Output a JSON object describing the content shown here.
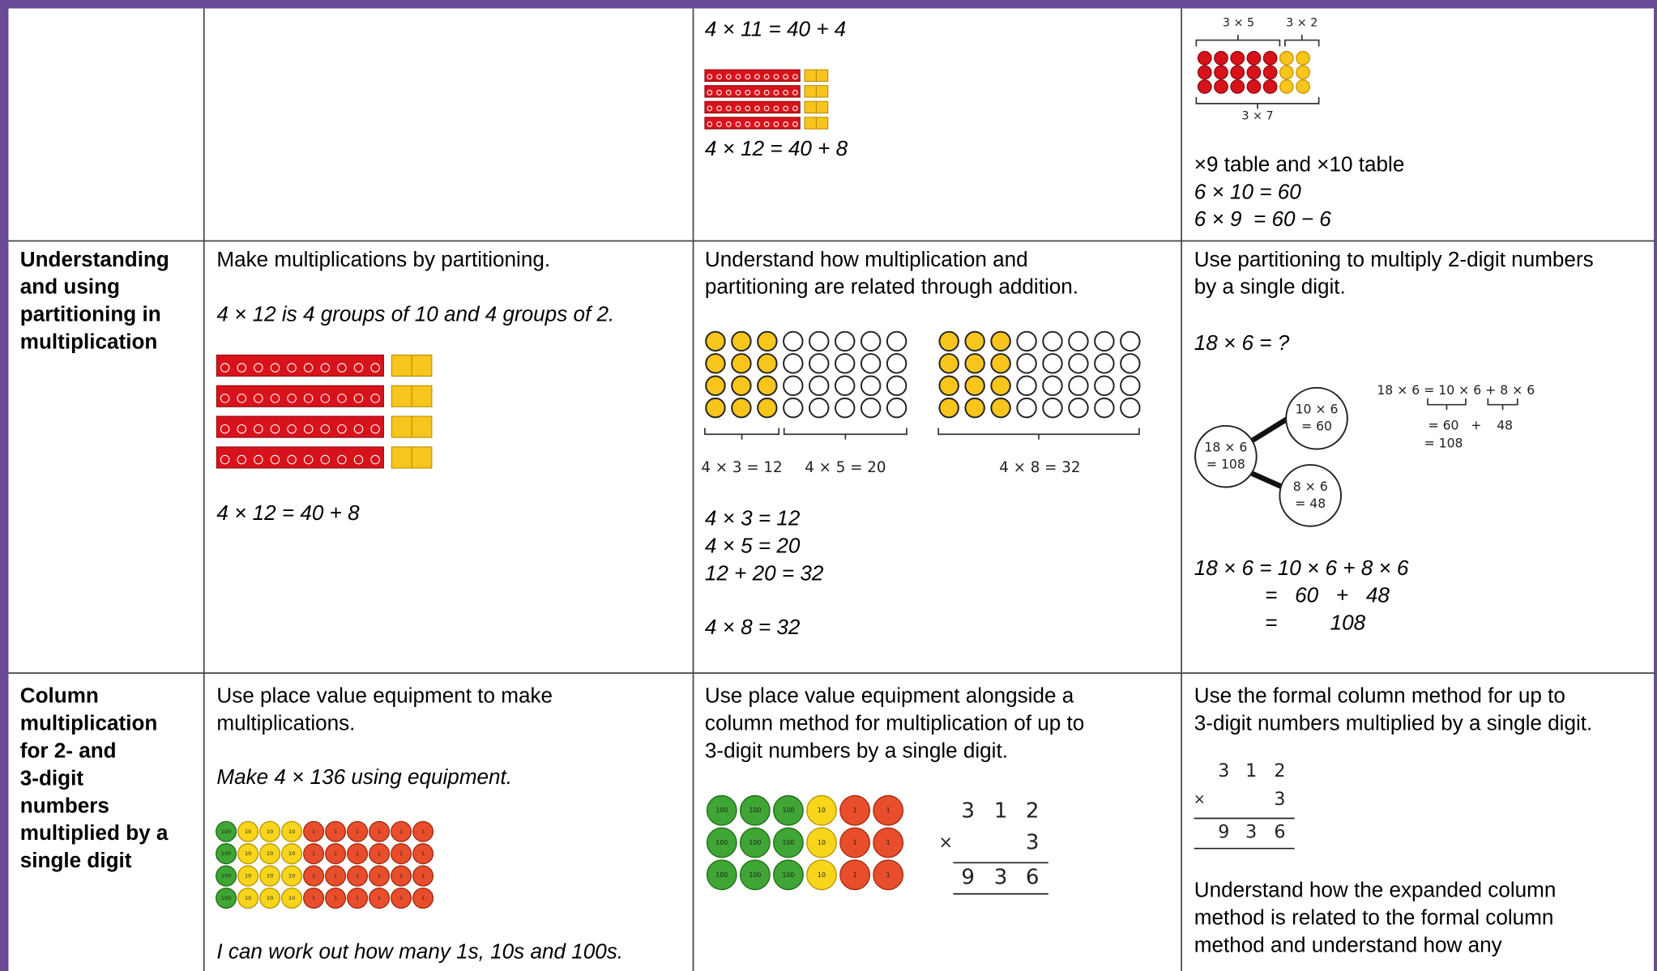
{
  "table": {
    "rows": [
      {
        "col3": {
          "lines": [
            "4 × 11 = 40 + 4",
            "4 × 12 = 40 + 8"
          ]
        },
        "col4": {
          "array_labels": [
            "3 × 5",
            "3 × 2",
            "3 × 7"
          ],
          "lines": [
            "×9 table and ×10 table",
            "6 × 10 = 60",
            "6 × 9  = 60 − 6"
          ]
        }
      },
      {
        "heading": [
          "Understanding",
          "and using",
          "partitioning in",
          "multiplication"
        ],
        "col2": {
          "intro": "Make multiplications by partitioning.",
          "example": "4 × 12 is 4 groups of 10 and 4 groups of 2.",
          "result": "4 × 12 = 40 + 8"
        },
        "col3": {
          "intro": [
            "Understand how multiplication and",
            "partitioning are related through addition."
          ],
          "array_labels": [
            "4 × 3 = 12",
            "4 × 5 = 20",
            "4 × 8 = 32"
          ],
          "lines": [
            "4 × 3 = 12",
            "4 × 5 = 20",
            "12 + 20 = 32"
          ],
          "result": "4 × 8 = 32"
        },
        "col4": {
          "intro": [
            "Use partitioning to multiply 2-digit numbers",
            "by a single digit."
          ],
          "question": "18 × 6 = ?",
          "tree": [
            "18 × 6",
            "= 108",
            "10 × 6",
            "= 60",
            "8 × 6",
            "= 48"
          ],
          "expression": [
            "18 × 6 = 10 × 6 + 8 × 6",
            "= 60",
            "+",
            "48",
            "= 108"
          ],
          "working": [
            "18 × 6 = 10 × 6 + 8 × 6",
            "=   60   +   48",
            "=         108"
          ]
        }
      },
      {
        "heading": [
          "Column",
          "multiplication",
          "for 2- and",
          "3-digit",
          "numbers",
          "multiplied by a",
          "single digit"
        ],
        "col2": {
          "intro": [
            "Use place value equipment to make",
            "multiplications."
          ],
          "example": "Make 4 × 136 using equipment.",
          "counter_labels": [
            "100",
            "10",
            "1"
          ],
          "note": "I can work out how many 1s, 10s and 100s."
        },
        "col3": {
          "intro": [
            "Use place value equipment alongside a",
            "column method for multiplication of up to",
            "3-digit numbers by a single digit."
          ],
          "counter_labels": [
            "100",
            "10",
            "1"
          ],
          "column": {
            "top": [
              "3",
              "1",
              "2"
            ],
            "sign": "×",
            "multiplier": "3",
            "product": [
              "9",
              "3",
              "6"
            ]
          }
        },
        "col4": {
          "intro": [
            "Use the formal column method for up to",
            "3-digit numbers multiplied by a single digit."
          ],
          "column": {
            "top": [
              "3",
              "1",
              "2"
            ],
            "sign": "×",
            "multiplier": "3",
            "product": [
              "9",
              "3",
              "6"
            ]
          },
          "outro": [
            "Understand how the expanded column",
            "method is related to the formal column",
            "method and understand how any"
          ]
        }
      }
    ]
  }
}
